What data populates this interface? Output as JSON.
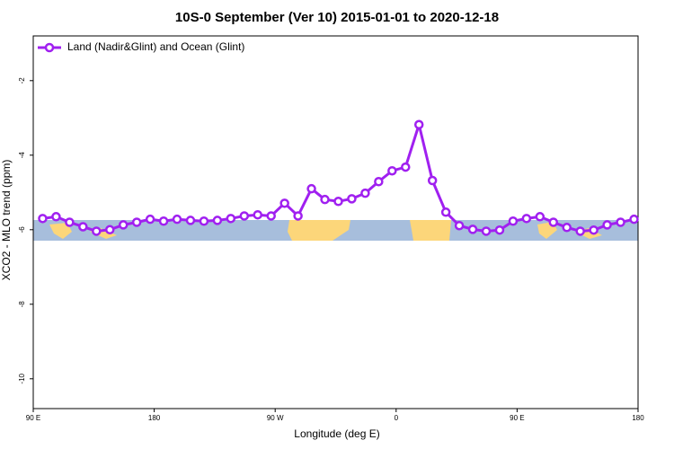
{
  "chart_data": {
    "type": "line",
    "title": "10S-0 September (Ver 10)   2015-01-01 to 2020-12-18",
    "xlabel": "Longitude (deg E)",
    "ylabel": "XCO2 - MLO trend (ppm)",
    "legend": "upper left",
    "x": [
      97,
      107,
      117,
      127,
      137,
      147,
      157,
      167,
      177,
      187,
      197,
      207,
      217,
      227,
      237,
      247,
      257,
      267,
      277,
      287,
      297,
      307,
      317,
      327,
      337,
      347,
      357,
      367,
      377,
      387,
      397,
      407,
      417,
      427,
      437,
      447,
      457,
      467,
      477,
      487,
      497,
      507,
      517,
      527,
      537
    ],
    "series": [
      {
        "name": "Land (Nadir&Glint) and Ocean (Glint)",
        "color": "#a020f0",
        "values": [
          -5.7,
          -5.65,
          -5.8,
          -5.92,
          -6.04,
          -6.0,
          -5.87,
          -5.8,
          -5.72,
          -5.77,
          -5.72,
          -5.75,
          -5.77,
          -5.75,
          -5.7,
          -5.63,
          -5.6,
          -5.63,
          -5.29,
          -5.63,
          -4.9,
          -5.19,
          -5.24,
          -5.17,
          -5.02,
          -4.71,
          -4.42,
          -4.32,
          -3.18,
          -4.68,
          -5.53,
          -5.89,
          -5.99,
          -6.04,
          -6.01,
          -5.77,
          -5.7,
          -5.65,
          -5.8,
          -5.94,
          -6.04,
          -6.01,
          -5.87,
          -5.8,
          -5.72
        ]
      }
    ],
    "xlim": [
      90,
      540
    ],
    "xticks": [
      {
        "value": 90,
        "label": "90 E"
      },
      180,
      {
        "value": 270,
        "label": "90 W"
      },
      {
        "value": 360,
        "label": "0"
      },
      {
        "value": 450,
        "label": "90 E"
      },
      {
        "value": 540,
        "label": "180"
      }
    ],
    "ylim": [
      -10.8,
      -0.8
    ],
    "yticks": [
      -2,
      -4,
      -6,
      -8,
      -10
    ]
  }
}
